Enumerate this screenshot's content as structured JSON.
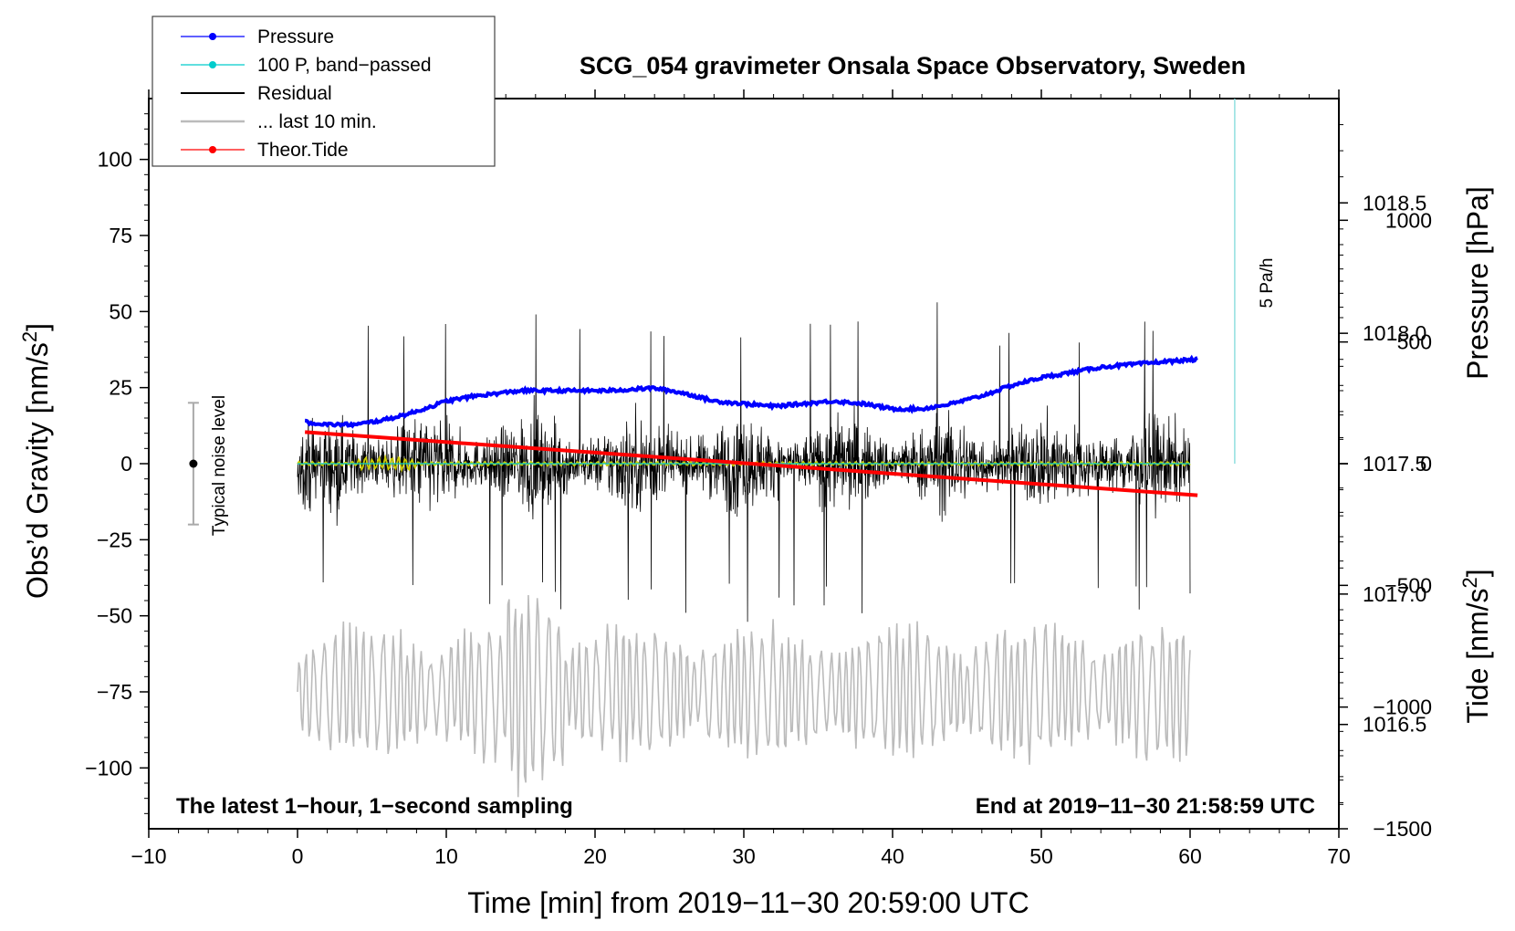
{
  "chart_data": {
    "type": "line",
    "title": "SCG_054 gravimeter Onsala Space Observatory, Sweden",
    "xlabel": "Time [min] from 2019−11−30 20:59:00 UTC",
    "ylabel_main": "Obs’d Gravity [nm/s",
    "ylabel_main_sup": "2",
    "ylabel_main_close": "]",
    "ylabel_pressure": "Pressure [hPa]",
    "ylabel_tide": "Tide [nm/s",
    "ylabel_tide_sup": "2",
    "ylabel_tide_close": "]",
    "xlim": [
      -10,
      70
    ],
    "ylim": [
      -120,
      120
    ],
    "pressure_ylim": [
      1016.1,
      1018.9
    ],
    "tide_ylim": [
      -1500,
      1500
    ],
    "x_ticks": [
      -10,
      0,
      10,
      20,
      30,
      40,
      50,
      60,
      70
    ],
    "x_tick_labels": [
      "−10",
      "0",
      "10",
      "20",
      "30",
      "40",
      "50",
      "60",
      "70"
    ],
    "y_ticks": [
      100,
      75,
      50,
      25,
      0,
      -25,
      -50,
      -75,
      -100
    ],
    "y_tick_labels": [
      "100",
      "75",
      "50",
      "25",
      "0",
      "−25",
      "−50",
      "−75",
      "−100"
    ],
    "pressure_ticks": [
      1018.5,
      1018.0,
      1017.5,
      1017.0,
      1016.5
    ],
    "pressure_tick_labels": [
      "1018.5",
      "1018.0",
      "1017.5",
      "1017.0",
      "1016.5"
    ],
    "tide_ticks": [
      1000,
      500,
      0,
      -500,
      -1000,
      -1500
    ],
    "tide_tick_labels": [
      "1000",
      "500",
      "0",
      "−500",
      "−1000",
      "−1500"
    ],
    "legend": [
      {
        "label": "Pressure",
        "color": "#0000ff",
        "marker": true
      },
      {
        "label": "100 P, band−passed",
        "color": "#00cccc",
        "marker": true
      },
      {
        "label": "Residual",
        "color": "#000000",
        "marker": false
      },
      {
        "label": "... last 10 min.",
        "color": "#bbbbbb",
        "marker": false
      },
      {
        "label": "Theor.Tide",
        "color": "#ff0000",
        "marker": true
      }
    ],
    "legend_position": "top-left",
    "annotations": {
      "bottom_left": "The latest 1−hour, 1−second sampling",
      "bottom_right": "End at 2019−11−30 21:58:59 UTC",
      "scale_bar": "5 Pa/h",
      "noise_level": "Typical noise level"
    },
    "series": [
      {
        "name": "Pressure",
        "axis": "pressure",
        "color": "#0000ff",
        "x": [
          0.5,
          2,
          4,
          6,
          8,
          10,
          12,
          15,
          18,
          21,
          24,
          26,
          28,
          30,
          32,
          34,
          36,
          38,
          40,
          42,
          44,
          46,
          48,
          50,
          52,
          54,
          56,
          58,
          60.5
        ],
        "y": [
          1017.66,
          1017.65,
          1017.65,
          1017.67,
          1017.7,
          1017.74,
          1017.76,
          1017.78,
          1017.78,
          1017.78,
          1017.79,
          1017.77,
          1017.74,
          1017.73,
          1017.72,
          1017.73,
          1017.74,
          1017.73,
          1017.71,
          1017.71,
          1017.73,
          1017.76,
          1017.8,
          1017.83,
          1017.85,
          1017.87,
          1017.88,
          1017.89,
          1017.9
        ]
      },
      {
        "name": "100 P, band−passed",
        "axis": "pressure",
        "color": "#00cccc",
        "x": [
          0,
          60
        ],
        "y": [
          1017.5,
          1017.5
        ]
      },
      {
        "name": "Theor.Tide",
        "axis": "tide",
        "color": "#ff0000",
        "x": [
          0.5,
          60.5
        ],
        "y": [
          130,
          -130
        ]
      },
      {
        "name": "Residual",
        "axis": "main",
        "color": "#000000",
        "x_range": [
          0,
          60
        ],
        "amplitude": 25,
        "max_peak": 53,
        "min_peak": -52
      },
      {
        "name": "Residual (low-pass)",
        "axis": "main",
        "color": "#cccc00",
        "x_range": [
          0,
          60
        ],
        "amplitude": 1
      },
      {
        "name": "... last 10 min.",
        "axis": "main",
        "color": "#bbbbbb",
        "x_range": [
          0,
          60
        ],
        "offset": -75,
        "amplitude": 25
      }
    ],
    "noise_level_bar": {
      "x": -7,
      "y": 0,
      "half_range": 20
    },
    "scale_bar_line": {
      "x": 63,
      "y0": 0,
      "y1": 120
    }
  }
}
